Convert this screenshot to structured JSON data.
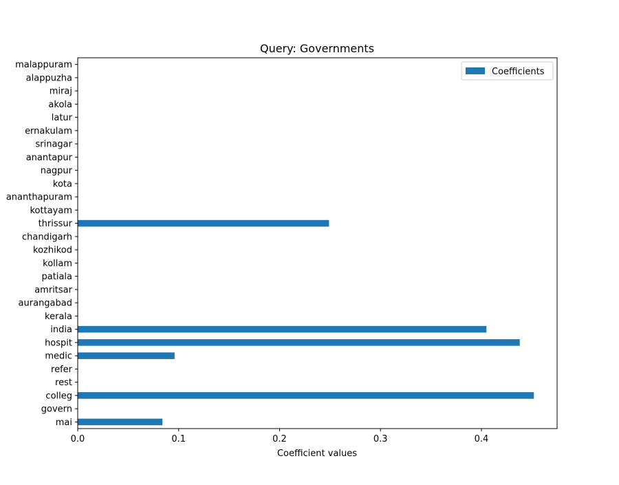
{
  "chart_data": {
    "type": "bar",
    "orientation": "horizontal",
    "title": "Query: Governments",
    "xlabel": "Coefficient values",
    "ylabel": "",
    "xlim": [
      0.0,
      0.475
    ],
    "xticks": [
      "0.0",
      "0.1",
      "0.2",
      "0.3",
      "0.4"
    ],
    "xtick_values": [
      0.0,
      0.1,
      0.2,
      0.3,
      0.4
    ],
    "grid": false,
    "legend_position": "upper right",
    "categories": [
      "mai",
      "govern",
      "colleg",
      "rest",
      "refer",
      "medic",
      "hospit",
      "india",
      "kerala",
      "aurangabad",
      "amritsar",
      "patiala",
      "kollam",
      "kozhikod",
      "chandigarh",
      "thrissur",
      "kottayam",
      "ananthapuram",
      "kota",
      "nagpur",
      "anantapur",
      "srinagar",
      "ernakulam",
      "latur",
      "akola",
      "miraj",
      "alappuzha",
      "malappuram"
    ],
    "series": [
      {
        "name": "Coefficients",
        "color": "#1f77b4",
        "values": [
          0.084,
          0.0,
          0.452,
          0.0,
          0.0,
          0.096,
          0.438,
          0.405,
          0.0,
          0.0,
          0.0,
          0.0,
          0.0,
          0.0,
          0.0,
          0.249,
          0.0,
          0.0,
          0.0,
          0.0,
          0.0,
          0.0,
          0.0,
          0.0,
          0.0,
          0.0,
          0.0,
          0.0
        ]
      }
    ]
  }
}
